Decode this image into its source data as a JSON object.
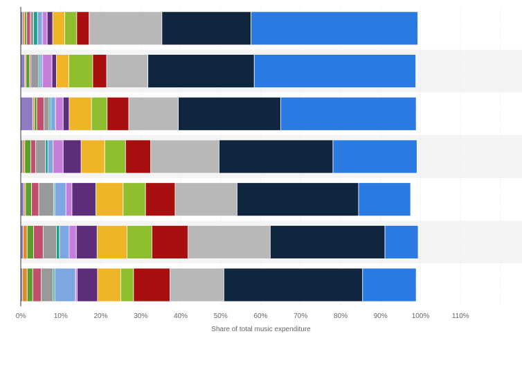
{
  "chart_data": {
    "type": "bar",
    "orientation": "horizontal",
    "stacked": true,
    "xlabel": "Share of total music expenditure",
    "xlim": [
      0,
      120
    ],
    "xticks": [
      0,
      10,
      20,
      30,
      40,
      50,
      60,
      70,
      80,
      90,
      100,
      110
    ],
    "xtick_labels": [
      "0%",
      "10%",
      "20%",
      "30%",
      "40%",
      "50%",
      "60%",
      "70%",
      "80%",
      "90%",
      "100%",
      "110%"
    ],
    "grid": true,
    "legend": "none",
    "bars": 7,
    "series": [
      {
        "color": "#8e7cc3",
        "values": [
          0.5,
          1.0,
          3.0,
          0.5,
          0.8,
          0.6,
          0.4
        ]
      },
      {
        "color": "#e08a2e",
        "values": [
          0.5,
          0.3,
          0.4,
          0.5,
          0.4,
          1.0,
          1.2
        ]
      },
      {
        "color": "#5a9e2f",
        "values": [
          0.5,
          0.9,
          0.6,
          1.5,
          1.5,
          1.6,
          1.4
        ]
      },
      {
        "color": "#c0506a",
        "values": [
          0.9,
          0.3,
          1.8,
          1.2,
          1.8,
          2.4,
          2.1
        ]
      },
      {
        "color": "#999999",
        "values": [
          0.8,
          1.9,
          1.3,
          2.5,
          3.7,
          3.3,
          3.0
        ]
      },
      {
        "color": "#1e9e8a",
        "values": [
          1.0,
          0.4,
          0.4,
          0.6,
          0.3,
          0.8,
          0.4
        ]
      },
      {
        "color": "#7ea6e0",
        "values": [
          1.2,
          0.6,
          1.2,
          1.3,
          2.8,
          2.4,
          5.2
        ]
      },
      {
        "color": "#c77ddc",
        "values": [
          1.2,
          2.4,
          1.9,
          2.5,
          1.5,
          1.8,
          0.4
        ]
      },
      {
        "color": "#5e2d79",
        "values": [
          1.4,
          1.1,
          1.5,
          4.5,
          6.0,
          5.2,
          5.1
        ]
      },
      {
        "color": "#f0b429",
        "values": [
          3.0,
          3.1,
          5.6,
          5.9,
          6.8,
          7.5,
          5.8
        ]
      },
      {
        "color": "#8fbe2e",
        "values": [
          3.0,
          6.0,
          3.9,
          5.2,
          5.6,
          6.2,
          3.2
        ]
      },
      {
        "color": "#a80f0f",
        "values": [
          3.1,
          3.5,
          5.4,
          6.3,
          7.4,
          9.0,
          9.1
        ]
      },
      {
        "color": "#b8b8b8",
        "values": [
          18.2,
          10.3,
          12.4,
          17.1,
          15.5,
          20.6,
          13.5
        ]
      },
      {
        "color": "#10263f",
        "values": [
          22.3,
          26.6,
          25.6,
          28.5,
          30.4,
          28.7,
          34.7
        ]
      },
      {
        "color": "#2a7ae2",
        "values": [
          41.7,
          40.4,
          33.9,
          21.0,
          13.0,
          8.3,
          13.4
        ]
      }
    ]
  }
}
